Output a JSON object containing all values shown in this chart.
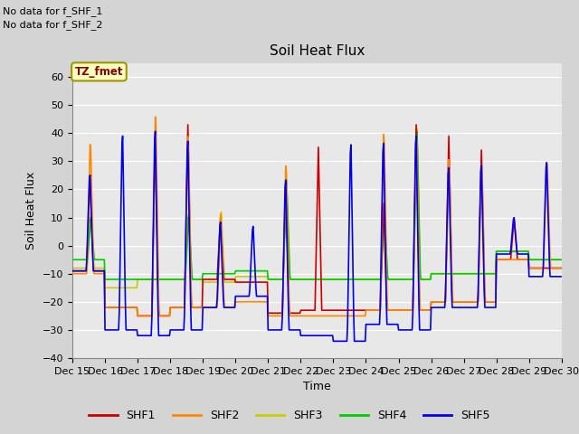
{
  "title": "Soil Heat Flux",
  "ylabel": "Soil Heat Flux",
  "xlabel": "Time",
  "annotations": [
    "No data for f_SHF_1",
    "No data for f_SHF_2"
  ],
  "tz_label": "TZ_fmet",
  "ylim": [
    -40,
    65
  ],
  "yticks": [
    -40,
    -30,
    -20,
    -10,
    0,
    10,
    20,
    30,
    40,
    50,
    60
  ],
  "colors": {
    "SHF1": "#cc0000",
    "SHF2": "#ff8800",
    "SHF3": "#cccc00",
    "SHF4": "#00cc00",
    "SHF5": "#0000ee"
  },
  "linewidth": 1.2,
  "fig_bg": "#d4d4d4",
  "plot_bg": "#e8e8e8",
  "grid_color": "#ffffff"
}
